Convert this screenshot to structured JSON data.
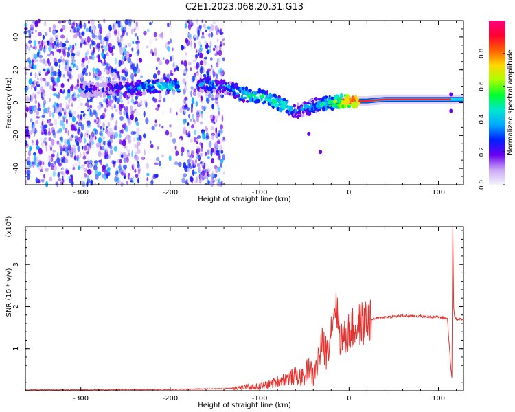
{
  "figure": {
    "title": "C2E1.2023.068.20.31.G13"
  },
  "chart_data": [
    {
      "type": "heatmap",
      "xlabel": "Height of straight line (km)",
      "ylabel": "Frequency (Hz)",
      "xlim": [
        -362,
        128
      ],
      "ylim": [
        -50,
        50
      ],
      "xticks": [
        -300,
        -200,
        -100,
        0,
        100
      ],
      "xtick_labels": [
        "-300",
        "-200",
        "-100",
        "0",
        "100"
      ],
      "yticks": [
        -40,
        -20,
        0,
        20,
        40
      ],
      "ytick_labels": [
        "-40",
        "-20",
        "0",
        "20",
        "40"
      ],
      "colorbar": {
        "label": "Normalized spectral amplitude",
        "range": [
          0,
          1
        ],
        "ticks": [
          0.0,
          0.2,
          0.4,
          0.6,
          0.8
        ],
        "tick_labels": [
          "0.0",
          "0.2",
          "0.4",
          "0.6",
          "0.8"
        ],
        "colormap": [
          "#f4f4fc",
          "#c9a8f5",
          "#6a00f0",
          "#0020ff",
          "#00a8ff",
          "#00e6d0",
          "#00ff30",
          "#a8ff00",
          "#ffd800",
          "#ff6000",
          "#ff0030",
          "#ff0080"
        ]
      },
      "ridge": {
        "x": [
          -340,
          -320,
          -300,
          -280,
          -260,
          -240,
          -220,
          -200,
          -180,
          -160,
          -140,
          -120,
          -100,
          -90,
          -80,
          -70,
          -60,
          -50,
          -40,
          -30,
          -20,
          -10,
          0,
          20,
          40,
          60,
          80,
          100,
          110,
          120,
          128
        ],
        "y": [
          8,
          8,
          8,
          8,
          9,
          9,
          10,
          10,
          10,
          11,
          10,
          5,
          4,
          2,
          0,
          -2,
          -5,
          -4,
          -2,
          -1,
          0,
          1,
          1,
          1,
          2,
          2,
          2,
          2,
          2,
          2,
          2
        ],
        "amplitude": [
          0.25,
          0.3,
          0.25,
          0.2,
          0.3,
          0.35,
          0.4,
          0.45,
          0.3,
          0.35,
          0.3,
          0.45,
          0.5,
          0.5,
          0.5,
          0.5,
          0.3,
          0.35,
          0.4,
          0.45,
          0.55,
          0.7,
          0.8,
          0.85,
          0.9,
          0.95,
          0.95,
          0.9,
          0.6,
          0.6,
          0.55
        ]
      }
    },
    {
      "type": "line",
      "xlabel": "Height of straight line (km)",
      "ylabel": "SNR (10 * v/v)",
      "y_multiplier_label": "(x10",
      "y_multiplier_exp": "4",
      "y_multiplier_close": ")",
      "xlim": [
        -362,
        128
      ],
      "ylim": [
        0,
        3.9
      ],
      "xticks": [
        -300,
        -200,
        -100,
        0,
        100
      ],
      "xtick_labels": [
        "-300",
        "-200",
        "-100",
        "0",
        "100"
      ],
      "yticks": [
        1,
        2,
        3
      ],
      "ytick_labels": [
        "1",
        "2",
        "3"
      ],
      "color": "#e8302c",
      "series": [
        {
          "x": [
            -362,
            -300,
            -200,
            -140,
            -120,
            -100,
            -90,
            -80,
            -70,
            -60,
            -50,
            -45,
            -40,
            -30,
            -25,
            -20,
            -15,
            -10,
            -5,
            0,
            10,
            20,
            30,
            40,
            60,
            80,
            100,
            110,
            114,
            115,
            116,
            117,
            118,
            120,
            128
          ],
          "y": [
            0.02,
            0.02,
            0.03,
            0.05,
            0.08,
            0.1,
            0.15,
            0.22,
            0.3,
            0.35,
            0.3,
            0.6,
            0.3,
            1.1,
            0.9,
            1.5,
            2.1,
            1.3,
            1.2,
            1.4,
            1.55,
            1.65,
            1.72,
            1.75,
            1.78,
            1.77,
            1.75,
            1.72,
            0.5,
            0.3,
            3.9,
            2.0,
            1.75,
            1.7,
            1.7
          ]
        }
      ]
    }
  ]
}
